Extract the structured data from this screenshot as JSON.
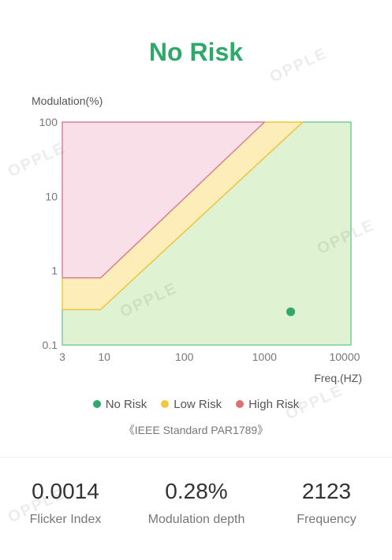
{
  "status": {
    "title": "No Risk",
    "color": "#2fa86a"
  },
  "watermark_text": "OPPLE",
  "chart_data": {
    "type": "area",
    "xlabel": "Freq.(HZ)",
    "ylabel": "Modulation(%)",
    "x_scale": "log",
    "y_scale": "log",
    "xlim": [
      3,
      12000
    ],
    "ylim": [
      0.1,
      100
    ],
    "x_ticks": [
      {
        "value": 3,
        "label": "3"
      },
      {
        "value": 10,
        "label": "10"
      },
      {
        "value": 100,
        "label": "100"
      },
      {
        "value": 1000,
        "label": "1000"
      },
      {
        "value": 10000,
        "label": "10000"
      }
    ],
    "y_ticks": [
      {
        "value": 0.1,
        "label": "0.1"
      },
      {
        "value": 1,
        "label": "1"
      },
      {
        "value": 10,
        "label": "10"
      },
      {
        "value": 100,
        "label": "100"
      }
    ],
    "regions": [
      {
        "name": "High Risk",
        "fill": "#f9dfe8",
        "stroke": "#d9809a",
        "points": [
          [
            3,
            0.8
          ],
          [
            3,
            100
          ],
          [
            1000,
            100
          ],
          [
            9,
            0.8
          ]
        ]
      },
      {
        "name": "Low Risk",
        "fill": "#fdedb8",
        "stroke": "#f2c740",
        "points": [
          [
            3,
            0.3
          ],
          [
            3,
            0.8
          ],
          [
            9,
            0.8
          ],
          [
            1000,
            100
          ],
          [
            3000,
            100
          ],
          [
            9,
            0.3
          ]
        ]
      },
      {
        "name": "No Risk",
        "fill": "#dff2d2",
        "stroke": "#7ccb9a",
        "points": [
          [
            3,
            0.1
          ],
          [
            3,
            0.3
          ],
          [
            9,
            0.3
          ],
          [
            3000,
            100
          ],
          [
            12000,
            100
          ],
          [
            12000,
            0.1
          ]
        ]
      }
    ],
    "measurement": {
      "frequency": 2123,
      "modulation": 0.28,
      "color": "#2fa86a"
    },
    "grid": false
  },
  "legend": [
    {
      "label": "No Risk",
      "color": "#2fa86a"
    },
    {
      "label": "Low Risk",
      "color": "#f2c740"
    },
    {
      "label": "High Risk",
      "color": "#e07070"
    }
  ],
  "standard_note": "《IEEE Standard PAR1789》",
  "stats": [
    {
      "value": "0.0014",
      "label": "Flicker Index"
    },
    {
      "value": "0.28%",
      "label": "Modulation depth"
    },
    {
      "value": "2123",
      "label": "Frequency"
    }
  ]
}
